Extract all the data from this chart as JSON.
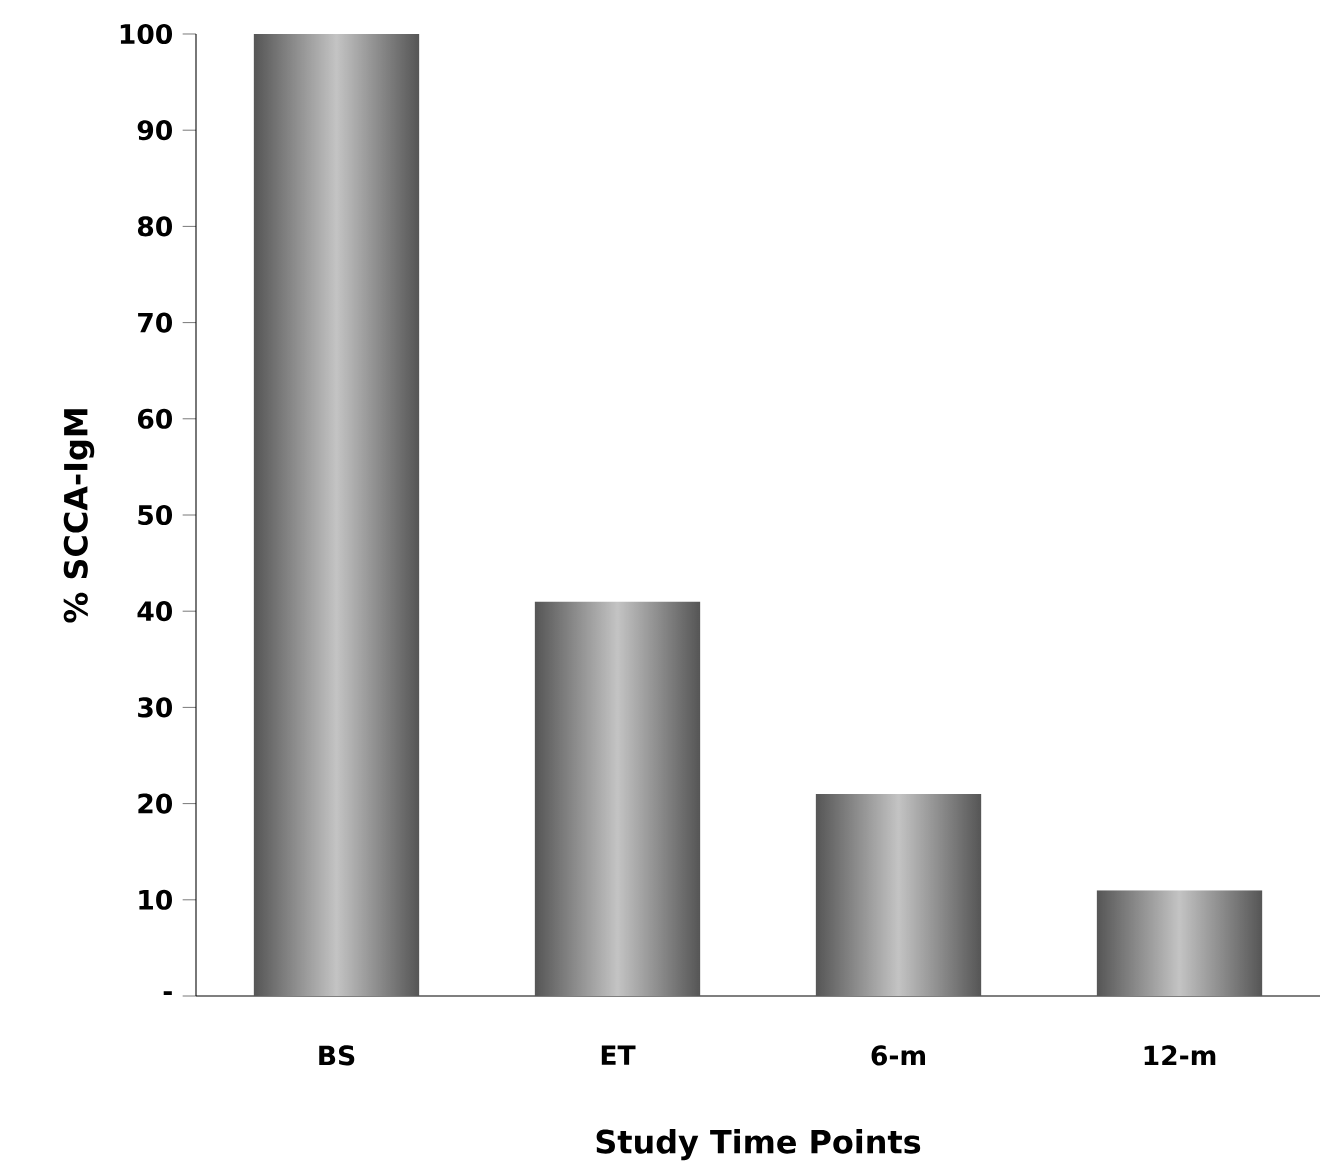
{
  "chart_data": {
    "type": "bar",
    "categories": [
      "BS",
      "ET",
      "6-m",
      "12-m"
    ],
    "values": [
      100,
      41,
      21,
      11
    ],
    "color": "#555555",
    "xlabel": "Study Time Points",
    "ylabel": "% SCCA-IgM",
    "ylim": [
      0,
      100
    ],
    "yticks": [
      {
        "value": 0,
        "label": "-"
      },
      10,
      20,
      30,
      40,
      50,
      60,
      70,
      80,
      90,
      100
    ],
    "grid": false
  }
}
